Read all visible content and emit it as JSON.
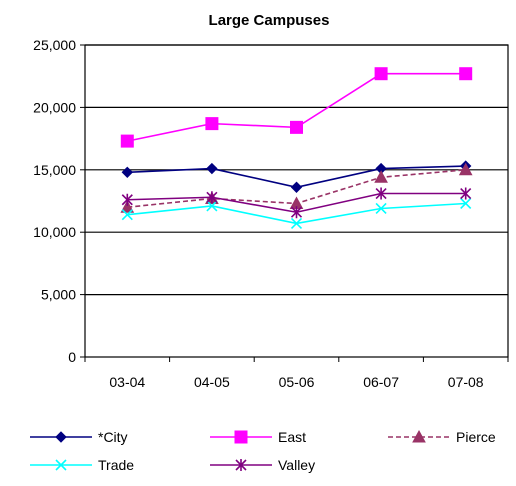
{
  "chart_data": {
    "type": "line",
    "title": "Large Campuses",
    "xlabel": "",
    "ylabel": "",
    "categories": [
      "03-04",
      "04-05",
      "05-06",
      "06-07",
      "07-08"
    ],
    "ylim": [
      0,
      25000
    ],
    "yticks": [
      0,
      5000,
      10000,
      15000,
      20000,
      25000
    ],
    "ytick_labels": [
      "0",
      "5,000",
      "10,000",
      "15,000",
      "20,000",
      "25,000"
    ],
    "grid": "horizontal major gridlines",
    "legend_position": "bottom",
    "series": [
      {
        "name": "*City",
        "values": [
          14800,
          15100,
          13600,
          15100,
          15300
        ],
        "color": "#000080",
        "marker": "diamond",
        "dash": "solid"
      },
      {
        "name": "East",
        "values": [
          17300,
          18700,
          18400,
          22700,
          22700
        ],
        "color": "#ff00ff",
        "marker": "square",
        "dash": "solid"
      },
      {
        "name": "Pierce",
        "values": [
          12000,
          12700,
          12300,
          14400,
          15000
        ],
        "color": "#993366",
        "marker": "triangle",
        "dash": "dashed"
      },
      {
        "name": "Trade",
        "values": [
          11400,
          12100,
          10700,
          11900,
          12300
        ],
        "color": "#00ffff",
        "marker": "x",
        "dash": "solid"
      },
      {
        "name": "Valley",
        "values": [
          12600,
          12800,
          11600,
          13100,
          13100
        ],
        "color": "#800080",
        "marker": "asterisk",
        "dash": "solid"
      }
    ]
  }
}
